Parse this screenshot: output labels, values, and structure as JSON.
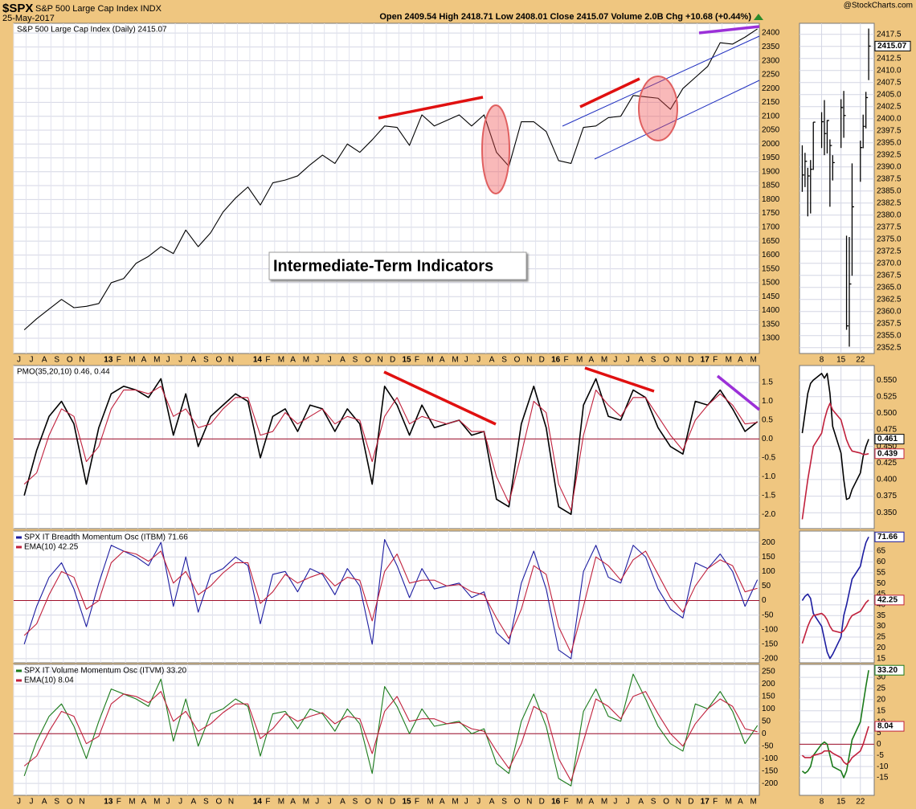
{
  "header": {
    "symbol": "$SPX",
    "name": "S&P 500 Large Cap Index INDX",
    "date": "25-May-2017",
    "quote": "Open 2409.54 High 2418.71 Low 2408.01 Close 2415.07 Volume 2.0B Chg +10.68 (+0.44%)",
    "credit": "@StockCharts.com"
  },
  "chart_data": [
    {
      "type": "line",
      "title": "S&P 500 Large Cap Index (Daily) 2415.07",
      "annotation": "Intermediate-Term Indicators",
      "categories": [
        "J",
        "J",
        "A",
        "S",
        "O",
        "N",
        null,
        "13",
        "F",
        "M",
        "A",
        "M",
        "J",
        "J",
        "A",
        "S",
        "O",
        "N",
        null,
        "14",
        "F",
        "M",
        "A",
        "M",
        "J",
        "J",
        "A",
        "S",
        "O",
        "N",
        "D",
        "15",
        "F",
        "M",
        "A",
        "M",
        "J",
        "J",
        "A",
        "S",
        "O",
        "N",
        "D",
        "16",
        "F",
        "M",
        "A",
        "M",
        "J",
        "J",
        "A",
        "S",
        "O",
        "N",
        "D",
        "17",
        "F",
        "M",
        "A",
        "M"
      ],
      "series": [
        {
          "color": "#000000",
          "values": [
            1330,
            1370,
            1405,
            1440,
            1410,
            1415,
            1425,
            1500,
            1515,
            1570,
            1595,
            1630,
            1605,
            1690,
            1630,
            1680,
            1755,
            1805,
            1845,
            1780,
            1860,
            1870,
            1885,
            1925,
            1960,
            1930,
            2000,
            1970,
            2015,
            2065,
            2060,
            1995,
            2105,
            2065,
            2085,
            2105,
            2065,
            2105,
            1970,
            1920,
            2080,
            2080,
            2045,
            1940,
            1930,
            2060,
            2065,
            2095,
            2100,
            2175,
            2170,
            2165,
            2125,
            2200,
            2240,
            2280,
            2365,
            2360,
            2385,
            2415
          ]
        }
      ],
      "ylim": [
        1245,
        2435
      ],
      "yticks": [
        1300,
        1350,
        1400,
        1450,
        1500,
        1550,
        1600,
        1650,
        1700,
        1750,
        1800,
        1850,
        1900,
        1950,
        2000,
        2050,
        2100,
        2150,
        2200,
        2250,
        2300,
        2350,
        2400
      ],
      "grid": true
    },
    {
      "type": "line",
      "title": "PMO(35,20,10) 0.46, 0.44",
      "series": [
        {
          "color": "#000000",
          "values": [
            -1.5,
            -0.3,
            0.6,
            1.0,
            0.4,
            -1.2,
            0.3,
            1.2,
            1.4,
            1.3,
            1.1,
            1.6,
            0.1,
            1.2,
            -0.2,
            0.6,
            0.9,
            1.2,
            1.0,
            -0.5,
            0.6,
            0.8,
            0.2,
            0.9,
            0.8,
            0.2,
            0.8,
            0.4,
            -1.2,
            1.4,
            0.9,
            0.1,
            0.9,
            0.3,
            0.4,
            0.5,
            0.1,
            0.2,
            -1.6,
            -1.8,
            0.4,
            1.4,
            0.3,
            -1.8,
            -2.0,
            0.9,
            1.6,
            0.6,
            0.5,
            1.3,
            1.1,
            0.3,
            -0.2,
            -0.4,
            1.0,
            0.9,
            1.3,
            0.8,
            0.2,
            0.46
          ]
        },
        {
          "color": "#c0203c",
          "values": [
            -1.2,
            -0.9,
            0.1,
            0.8,
            0.6,
            -0.6,
            -0.2,
            0.8,
            1.3,
            1.3,
            1.2,
            1.4,
            0.6,
            0.8,
            0.3,
            0.4,
            0.8,
            1.1,
            1.1,
            0.1,
            0.2,
            0.7,
            0.4,
            0.6,
            0.8,
            0.4,
            0.6,
            0.5,
            -0.6,
            0.6,
            1.1,
            0.4,
            0.6,
            0.5,
            0.4,
            0.5,
            0.2,
            0.2,
            -1.0,
            -1.7,
            -0.4,
            1.0,
            0.7,
            -1.2,
            -1.9,
            0.1,
            1.3,
            0.9,
            0.6,
            1.1,
            1.1,
            0.6,
            0.1,
            -0.3,
            0.5,
            0.9,
            1.2,
            0.9,
            0.4,
            0.44
          ]
        }
      ],
      "ylim": [
        -2.38,
        1.95
      ],
      "yticks": [
        1.5,
        {
          "value": 1,
          "label": "1.0"
        },
        0.5,
        {
          "value": 0,
          "label": "0.0"
        },
        -0.5,
        {
          "value": -1,
          "label": "-1.0"
        },
        -1.5,
        {
          "value": -2,
          "label": "-2.0"
        }
      ],
      "grid": true,
      "ref_line": 0,
      "ref_color": "#a0102a"
    },
    {
      "type": "line",
      "series": [
        {
          "name": "SPX IT Breadth Momentum Osc (ITBM) 71.66",
          "color": "#1c1ca0",
          "values": [
            -150,
            -20,
            80,
            130,
            40,
            -90,
            60,
            190,
            170,
            150,
            120,
            200,
            -20,
            150,
            -40,
            90,
            110,
            150,
            120,
            -80,
            90,
            100,
            30,
            110,
            90,
            20,
            110,
            50,
            -150,
            210,
            120,
            10,
            110,
            40,
            50,
            60,
            10,
            30,
            -110,
            -150,
            60,
            170,
            40,
            -170,
            -200,
            100,
            190,
            80,
            60,
            190,
            150,
            40,
            -30,
            -60,
            130,
            110,
            160,
            100,
            -20,
            71.66
          ]
        },
        {
          "name": "EMA(10) 42.25",
          "color": "#c0203c",
          "values": [
            -120,
            -80,
            20,
            100,
            80,
            -30,
            0,
            130,
            170,
            160,
            135,
            170,
            60,
            100,
            20,
            50,
            95,
            130,
            130,
            -10,
            30,
            90,
            60,
            80,
            95,
            50,
            80,
            70,
            -70,
            100,
            160,
            60,
            70,
            70,
            50,
            55,
            30,
            20,
            -60,
            -130,
            -30,
            120,
            90,
            -90,
            -180,
            -20,
            150,
            120,
            70,
            140,
            170,
            90,
            10,
            -40,
            50,
            110,
            140,
            120,
            30,
            42.25
          ]
        }
      ],
      "ylim": [
        -214,
        239
      ],
      "yticks": [
        200,
        150,
        100,
        50,
        0,
        -50,
        -100,
        -150,
        -200
      ],
      "grid": true,
      "ref_line": 0,
      "ref_color": "#a0102a"
    },
    {
      "type": "line",
      "categories": [
        "J",
        "J",
        "A",
        "S",
        "O",
        "N",
        null,
        "13",
        "F",
        "M",
        "A",
        "M",
        "J",
        "J",
        "A",
        "S",
        "O",
        "N",
        null,
        "14",
        "F",
        "M",
        "A",
        "M",
        "J",
        "J",
        "A",
        "S",
        "O",
        "N",
        "D",
        "15",
        "F",
        "M",
        "A",
        "M",
        "J",
        "J",
        "A",
        "S",
        "O",
        "N",
        "D",
        "16",
        "F",
        "M",
        "A",
        "M",
        "J",
        "J",
        "A",
        "S",
        "O",
        "N",
        "D",
        "17",
        "F",
        "M",
        "A",
        "M"
      ],
      "series": [
        {
          "name": "SPX IT Volume Momentum Osc (ITVM) 33.20",
          "color": "#1a7a1a",
          "values": [
            -170,
            -30,
            70,
            120,
            30,
            -100,
            50,
            180,
            160,
            140,
            110,
            220,
            -30,
            140,
            -50,
            80,
            100,
            140,
            110,
            -90,
            80,
            90,
            20,
            100,
            80,
            10,
            100,
            40,
            -160,
            190,
            110,
            0,
            100,
            30,
            40,
            50,
            0,
            20,
            -120,
            -160,
            50,
            160,
            30,
            -180,
            -210,
            90,
            180,
            70,
            50,
            240,
            140,
            30,
            -40,
            -70,
            120,
            100,
            170,
            90,
            -40,
            33.2
          ]
        },
        {
          "name": "EMA(10) 8.04",
          "color": "#c0203c",
          "values": [
            -130,
            -90,
            10,
            90,
            70,
            -40,
            -10,
            120,
            160,
            150,
            125,
            170,
            50,
            90,
            10,
            40,
            85,
            120,
            120,
            -20,
            20,
            80,
            50,
            70,
            85,
            40,
            70,
            60,
            -80,
            90,
            150,
            50,
            60,
            60,
            40,
            45,
            20,
            10,
            -70,
            -140,
            -40,
            110,
            80,
            -100,
            -190,
            -30,
            140,
            110,
            60,
            150,
            170,
            80,
            0,
            -50,
            40,
            100,
            140,
            110,
            20,
            8.04
          ]
        }
      ],
      "ylim": [
        -248,
        279
      ],
      "yticks": [
        250,
        200,
        150,
        100,
        50,
        0,
        -50,
        -100,
        -150,
        -200
      ],
      "grid": true,
      "ref_line": 0,
      "ref_color": "#a0102a"
    },
    {
      "type": "hilo",
      "x": [
        1,
        2,
        3,
        4,
        5,
        8,
        9,
        10,
        11,
        12,
        15,
        16,
        17,
        18,
        19,
        22,
        23,
        24,
        25
      ],
      "xlim": [
        0,
        27
      ],
      "xticks": [
        8,
        15,
        22
      ],
      "high": [
        2394.49,
        2392.93,
        2389.82,
        2391.43,
        2399.29,
        2401.36,
        2403.87,
        2399.73,
        2395.72,
        2392.44,
        2404.05,
        2405.77,
        2375.74,
        2375.46,
        2390.73,
        2395.46,
        2400.85,
        2405.58,
        2418.71
      ],
      "low": [
        2384.83,
        2385.82,
        2379.75,
        2380.35,
        2389.38,
        2393.92,
        2392.44,
        2392.79,
        2381.74,
        2387.19,
        2393.94,
        2396.05,
        2356.21,
        2352.72,
        2367.42,
        2386.92,
        2393.88,
        2397.99,
        2408.01
      ],
      "close": [
        2388.33,
        2391.17,
        2388.13,
        2389.52,
        2399.29,
        2399.38,
        2396.92,
        2399.63,
        2394.44,
        2390.9,
        2402.32,
        2400.67,
        2357.03,
        2365.72,
        2381.73,
        2394.02,
        2398.42,
        2404.39,
        2415.07
      ],
      "last_label": "2415.07",
      "color": "#000000",
      "ylim": [
        2351.3,
        2419.8
      ],
      "yticks": [
        2417.5,
        {
          "value": 2415,
          "label": "2415.0"
        },
        2412.5,
        {
          "value": 2410,
          "label": "2410.0"
        },
        2407.5,
        {
          "value": 2405,
          "label": "2405.0"
        },
        2402.5,
        {
          "value": 2400,
          "label": "2400.0"
        },
        2397.5,
        {
          "value": 2395,
          "label": "2395.0"
        },
        2392.5,
        {
          "value": 2390,
          "label": "2390.0"
        },
        2387.5,
        {
          "value": 2385,
          "label": "2385.0"
        },
        2382.5,
        {
          "value": 2380,
          "label": "2380.0"
        },
        2377.5,
        {
          "value": 2375,
          "label": "2375.0"
        },
        2372.5,
        {
          "value": 2370,
          "label": "2370.0"
        },
        2367.5,
        {
          "value": 2365,
          "label": "2365.0"
        },
        2362.5,
        {
          "value": 2360,
          "label": "2360.0"
        },
        2357.5,
        {
          "value": 2355,
          "label": "2355.0"
        },
        2352.5
      ],
      "grid": true
    },
    {
      "type": "line",
      "series": [
        {
          "color": "#000000",
          "values": [
            0.47,
            0.5,
            0.53,
            0.545,
            0.55,
            0.56,
            0.553,
            0.56,
            0.53,
            0.48,
            0.44,
            0.4,
            0.37,
            0.372,
            0.385,
            0.41,
            0.435,
            0.45,
            0.461
          ],
          "last_label": "0.461"
        },
        {
          "color": "#c0203c",
          "values": [
            0.34,
            0.37,
            0.4,
            0.425,
            0.45,
            0.47,
            0.49,
            0.505,
            0.515,
            0.505,
            0.49,
            0.475,
            0.46,
            0.45,
            0.443,
            0.44,
            0.438,
            0.438,
            0.439
          ],
          "last_label": "0.439"
        }
      ],
      "ylim": [
        0.326,
        0.572
      ],
      "yticks": [
        {
          "value": 0.55,
          "label": "0.550"
        },
        0.525,
        {
          "value": 0.5,
          "label": "0.500"
        },
        0.475,
        {
          "value": 0.45,
          "label": "0.450"
        },
        0.425,
        {
          "value": 0.4,
          "label": "0.400"
        },
        0.375,
        {
          "value": 0.35,
          "label": "0.350"
        }
      ],
      "grid": true
    },
    {
      "type": "line",
      "series": [
        {
          "color": "#1c1ca0",
          "values": [
            42,
            44,
            45,
            43,
            36,
            30,
            24,
            18,
            15,
            17,
            25,
            35,
            40,
            46,
            52,
            58,
            64,
            69,
            71.66
          ],
          "last_label": "71.66"
        },
        {
          "color": "#c0203c",
          "values": [
            22,
            26,
            30,
            33,
            35,
            36,
            35,
            33,
            30,
            28,
            27,
            28,
            30,
            33,
            35,
            37,
            39,
            41,
            42.25
          ],
          "last_label": "42.25"
        }
      ],
      "ylim": [
        13,
        74.4
      ],
      "yticks": [
        65,
        60,
        55,
        50,
        45,
        40,
        35,
        30,
        25,
        20,
        15
      ],
      "grid": true
    },
    {
      "type": "line",
      "x": [
        1,
        2,
        3,
        4,
        5,
        8,
        9,
        10,
        11,
        12,
        15,
        16,
        17,
        18,
        19,
        22,
        23,
        24,
        25
      ],
      "xlim": [
        0,
        27
      ],
      "xticks": [
        8,
        15,
        22
      ],
      "series": [
        {
          "color": "#1a7a1a",
          "values": [
            -12,
            -13,
            -12,
            -10,
            -5,
            0,
            1,
            0,
            -5,
            -10,
            -12,
            -15,
            -12,
            -5,
            2,
            10,
            18,
            26,
            33.2
          ],
          "last_label": "33.20"
        },
        {
          "color": "#c0203c",
          "values": [
            -5,
            -6,
            -6,
            -6,
            -5,
            -4,
            -3,
            -3,
            -3,
            -4,
            -6,
            -8,
            -9,
            -8,
            -6,
            -3,
            0,
            4,
            8.04
          ],
          "last_label": "8.04"
        }
      ],
      "ylim": [
        -22.9,
        35.8
      ],
      "yticks": [
        30,
        25,
        20,
        15,
        10,
        5,
        0,
        -5,
        -10,
        -15
      ],
      "grid": true,
      "ref_line": 0,
      "ref_color": "#a0102a"
    }
  ]
}
